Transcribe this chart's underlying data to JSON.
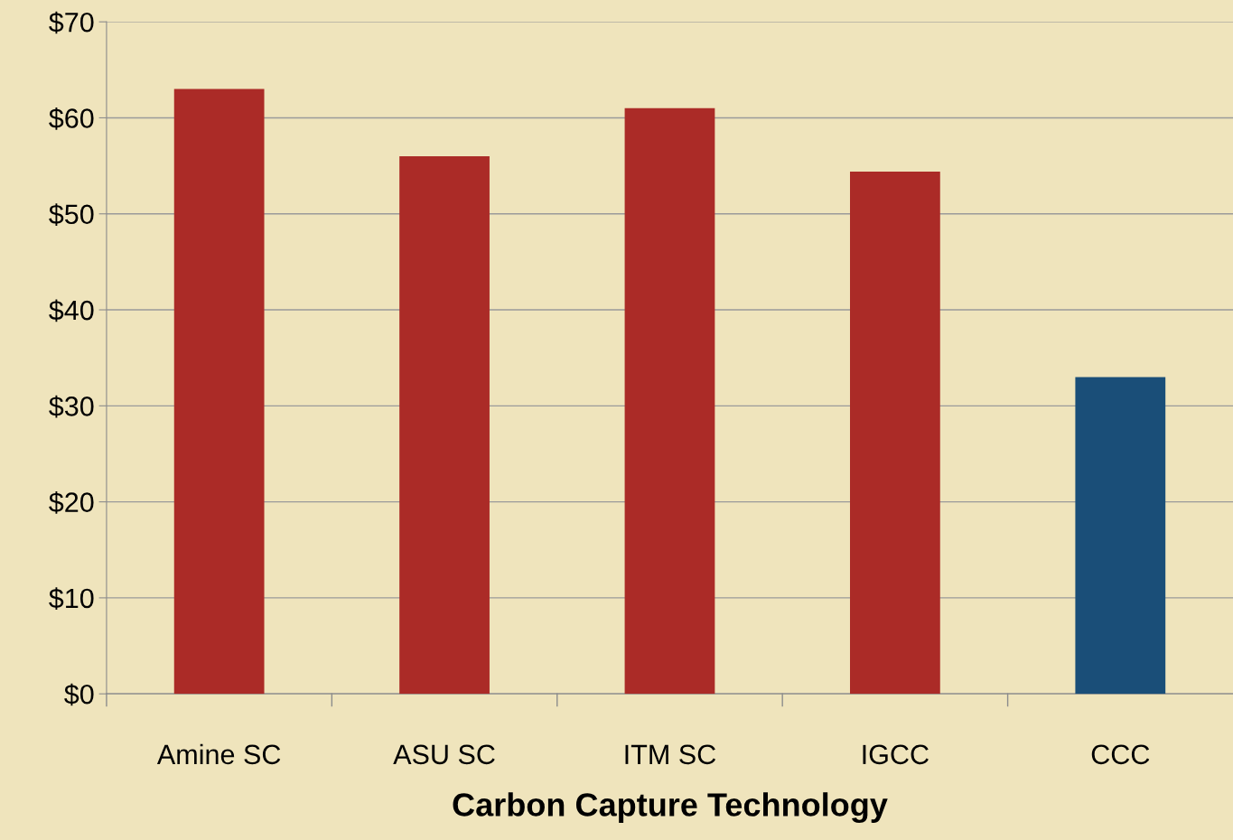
{
  "chart_data": {
    "type": "bar",
    "xlabel": "Carbon Capture Technology",
    "categories": [
      "Amine SC",
      "ASU SC",
      "ITM SC",
      "IGCC",
      "CCC"
    ],
    "values": [
      63,
      56,
      61,
      54.4,
      33
    ],
    "colors": [
      "#ab2b27",
      "#ab2b27",
      "#ab2b27",
      "#ab2b27",
      "#1a4e78"
    ],
    "ylim": [
      0,
      70
    ],
    "yticks": [
      {
        "value": 0,
        "label": "$0"
      },
      {
        "value": 10,
        "label": "$10"
      },
      {
        "value": 20,
        "label": "$20"
      },
      {
        "value": 30,
        "label": "$30"
      },
      {
        "value": 40,
        "label": "$40"
      },
      {
        "value": 50,
        "label": "$50"
      },
      {
        "value": 60,
        "label": "$60"
      },
      {
        "value": 70,
        "label": "$70"
      }
    ],
    "grid": "y",
    "legend": false
  }
}
